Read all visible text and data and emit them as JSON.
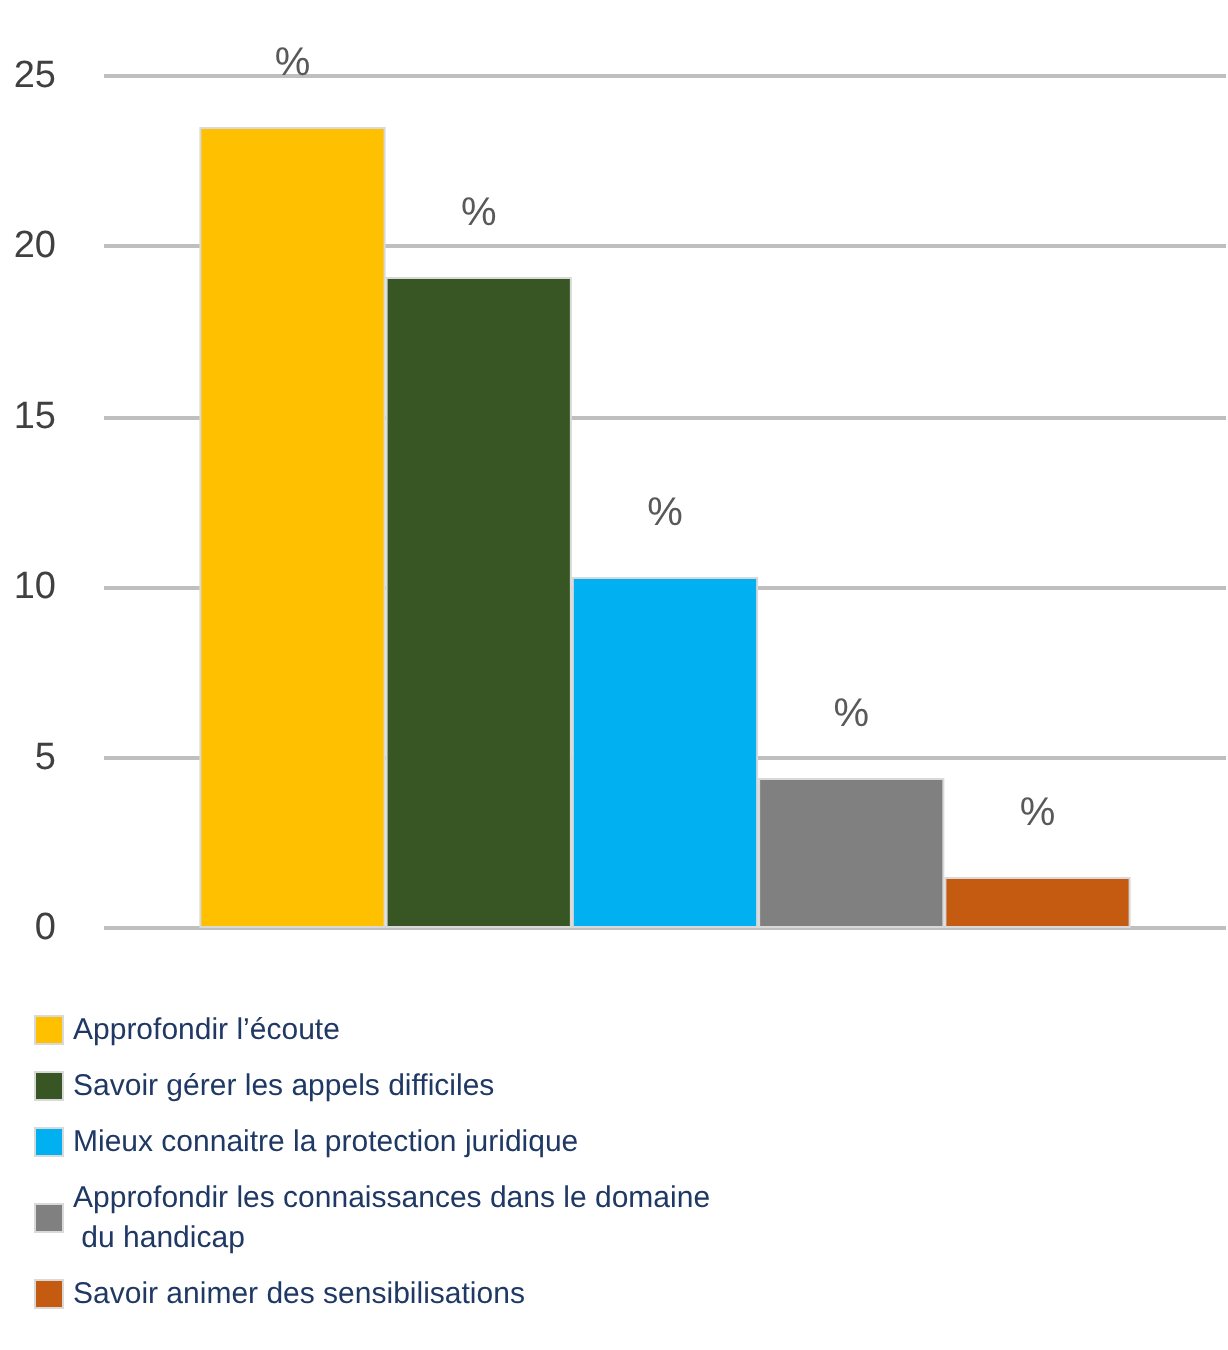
{
  "chart_data": {
    "type": "bar",
    "categories": [
      null
    ],
    "series": [
      {
        "name": "Approfondir l’écoute",
        "color": "#ffc000",
        "values": [
          23.5
        ],
        "value_labels": [
          "%"
        ]
      },
      {
        "name": "Savoir gérer les appels difficiles",
        "color": "#375623",
        "values": [
          19.1
        ],
        "value_labels": [
          "%"
        ]
      },
      {
        "name": "Mieux connaitre la protection juridique",
        "color": "#00b0f0",
        "values": [
          10.3
        ],
        "value_labels": [
          "%"
        ]
      },
      {
        "name": "Approfondir les connaissances dans le domaine du handicap",
        "color": "#808080",
        "values": [
          4.4
        ],
        "value_labels": [
          "%"
        ]
      },
      {
        "name": "Savoir animer des sensibilisations",
        "color": "#c55a11",
        "values": [
          1.5
        ],
        "value_labels": [
          "%"
        ]
      }
    ],
    "ylim": [
      0,
      25
    ],
    "yticks": [
      0,
      5,
      10,
      15,
      20,
      25
    ],
    "grid": "y",
    "legend": "bottom"
  }
}
